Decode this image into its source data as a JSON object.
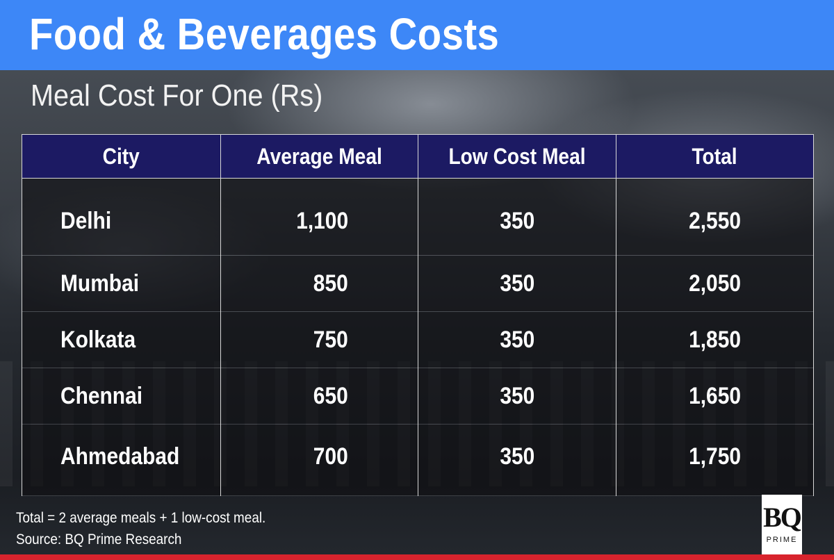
{
  "header": {
    "title": "Food & Beverages Costs",
    "subtitle": "Meal Cost For One (Rs)"
  },
  "chart_data": {
    "type": "table",
    "columns": [
      "City",
      "Average Meal",
      "Low Cost Meal",
      "Total"
    ],
    "rows": [
      [
        "Delhi",
        "1,100",
        "350",
        "2,550"
      ],
      [
        "Mumbai",
        "850",
        "350",
        "2,050"
      ],
      [
        "Kolkata",
        "750",
        "350",
        "1,850"
      ],
      [
        "Chennai",
        "650",
        "350",
        "1,650"
      ],
      [
        "Ahmedabad",
        "700",
        "350",
        "1,750"
      ]
    ]
  },
  "footer": {
    "note": "Total = 2 average meals + 1 low-cost meal.",
    "source": "Source: BQ Prime Research"
  },
  "logo": {
    "mark": "BQ",
    "sub": "PRIME"
  },
  "colors": {
    "header_band": "#3d87f7",
    "table_header": "#1c1a63",
    "bottom_bar": "#d8232d"
  }
}
